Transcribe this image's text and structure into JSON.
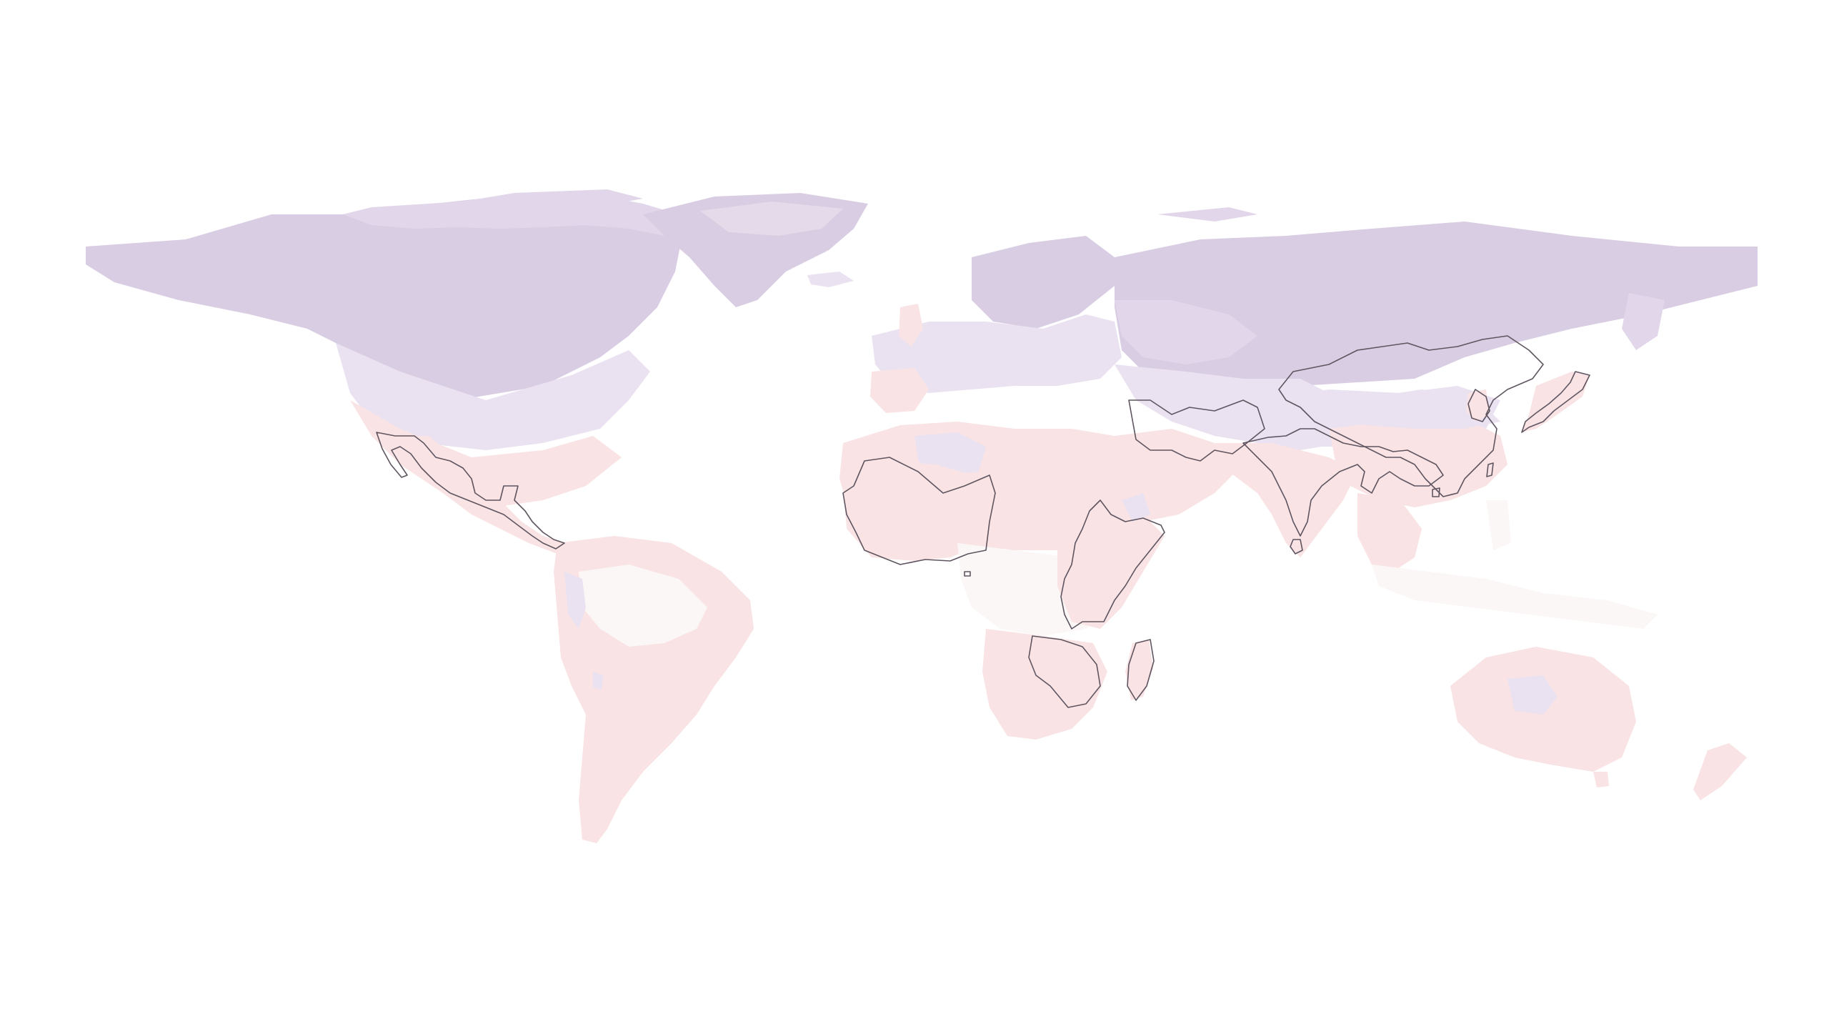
{
  "map": {
    "projection": "equirectangular",
    "background_color": "#ffffff",
    "palette": {
      "cold_deep": "#d9cde3",
      "cold_mid": "#e2d7ea",
      "cold_light": "#ebe2f1",
      "warm_light": "#f9e3e4",
      "warm_pale": "#fbeeee",
      "neutral": "#fbf7f6",
      "outline": "#5f5560"
    },
    "shading_layers": [
      "northern-cold-zone",
      "temperate-zone",
      "tropical-warm-zone",
      "southern-warm-zone"
    ],
    "outlined_regions": [
      "mexico-central-america",
      "west-africa",
      "east-africa",
      "southern-africa",
      "madagascar",
      "arabian-peninsula",
      "south-asia",
      "east-asia",
      "japan",
      "sri-lanka",
      "taiwan"
    ]
  }
}
